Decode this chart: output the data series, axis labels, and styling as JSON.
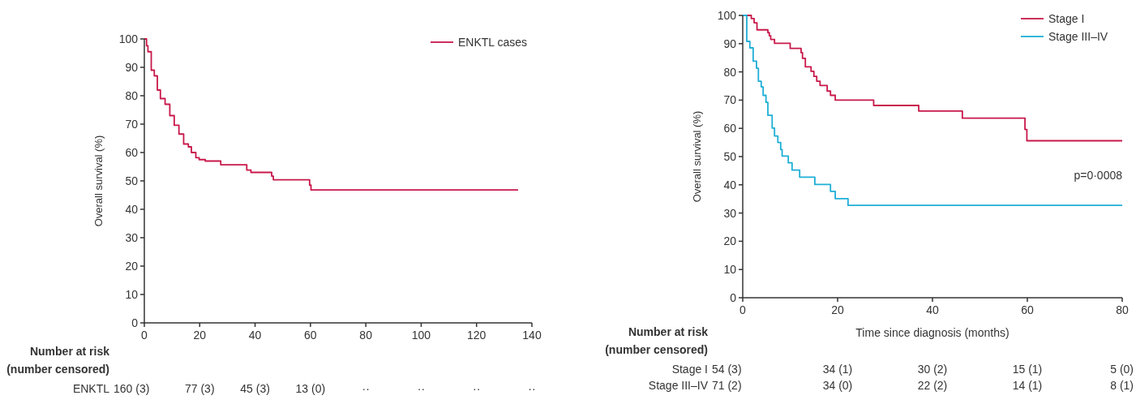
{
  "chart_data": [
    {
      "type": "step",
      "ylabel": "Overall survival (%)",
      "xlim": [
        0,
        140
      ],
      "xticks": [
        0,
        20,
        40,
        60,
        80,
        100,
        120,
        140
      ],
      "ylim": [
        0,
        100
      ],
      "yticks": [
        0,
        10,
        20,
        30,
        40,
        50,
        60,
        70,
        80,
        90,
        100
      ],
      "legend": "top right",
      "grid": false,
      "series": [
        {
          "name": "ENKTL cases",
          "color": "#c8184a",
          "x": [
            0,
            0.8,
            1.3,
            2.5,
            3.6,
            4.7,
            5.8,
            7.5,
            9.2,
            10.8,
            12.5,
            14.2,
            15.9,
            17,
            18.6,
            19.8,
            22,
            27.6,
            28.7,
            37,
            38.5,
            46,
            46.6,
            59.7,
            60.2,
            135
          ],
          "values": [
            100,
            97.6,
            95.5,
            89,
            87,
            82,
            79,
            77,
            73,
            69.6,
            66.5,
            63,
            62,
            60,
            58.2,
            57.5,
            57,
            55.7,
            55.7,
            53.8,
            53,
            51.7,
            50.4,
            48.5,
            46.8,
            46.8
          ]
        }
      ],
      "annotations": [
        "Number at risk",
        "(number censored)",
        "ENKTL",
        "160 (3)",
        "77 (3)",
        "45 (3)",
        "13 (0)",
        "··",
        "··",
        "··",
        "··"
      ]
    },
    {
      "type": "step",
      "xlabel": "Time since diagnosis (months)",
      "ylabel": "Overall survival (%)",
      "xlim": [
        0,
        80
      ],
      "xticks": [
        0,
        20,
        40,
        60,
        80
      ],
      "ylim": [
        0,
        100
      ],
      "yticks": [
        0,
        10,
        20,
        30,
        40,
        50,
        60,
        70,
        80,
        90,
        100
      ],
      "legend": "top right",
      "grid": false,
      "series": [
        {
          "name": "Stage I",
          "color": "#c8184a",
          "x": [
            0,
            1.8,
            2.4,
            3,
            5.3,
            5.6,
            5.9,
            6.7,
            10,
            12.3,
            12.6,
            13.2,
            14.4,
            15,
            15.6,
            16.3,
            17.8,
            18.5,
            19.5,
            27.6,
            37.1,
            46.3,
            59.5,
            59.9,
            80
          ],
          "values": [
            100,
            98.9,
            97.4,
            94.9,
            93.9,
            92.8,
            91.5,
            90.1,
            88.3,
            86.8,
            84.8,
            81.8,
            80.2,
            78.4,
            76.7,
            75.2,
            73.2,
            71.7,
            70,
            68.1,
            66.1,
            63.6,
            59.6,
            55.6,
            55.6
          ]
        },
        {
          "name": "Stage III–IV",
          "color": "#1eaed6",
          "x": [
            0,
            0.85,
            1.5,
            2.2,
            2.9,
            3.3,
            3.9,
            4.3,
            4.9,
            5.3,
            6.2,
            6.7,
            7.4,
            8,
            8.3,
            9.6,
            10.4,
            12,
            15.2,
            18.5,
            19.5,
            22.2,
            80
          ],
          "values": [
            100,
            90.8,
            88.5,
            83.8,
            81.3,
            76.7,
            74.7,
            71.7,
            69.2,
            64.6,
            60.1,
            57.3,
            55,
            52.5,
            50.2,
            47.8,
            45.2,
            42.7,
            40.1,
            37.7,
            35.1,
            32.7,
            32.7
          ]
        }
      ],
      "annotations": [
        "Number at risk",
        "(number censored)",
        "Stage I",
        "54 (3)",
        "34 (1)",
        "30 (2)",
        "15 (1)",
        "5 (0)",
        "Stage III–IV",
        "71 (2)",
        "34 (0)",
        "22 (2)",
        "14 (1)",
        "8 (1)",
        "p=0·0008"
      ]
    }
  ]
}
